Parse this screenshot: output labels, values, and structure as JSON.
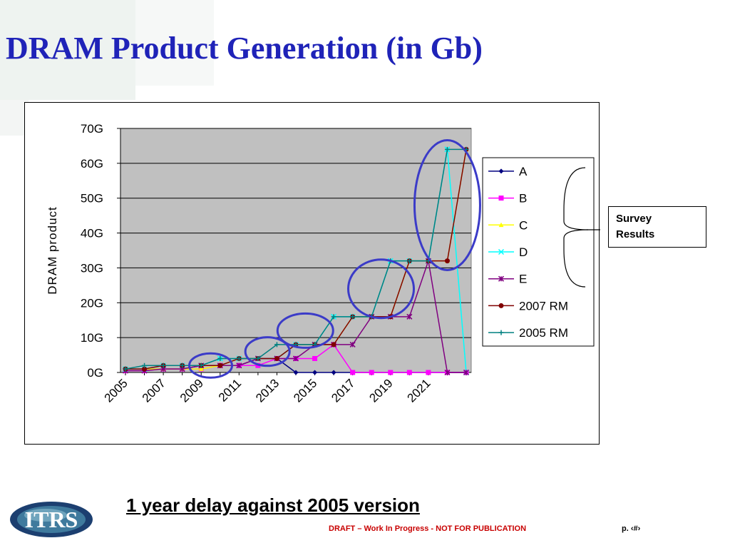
{
  "slide": {
    "title": "DRAM Product Generation (in Gb)",
    "callout": [
      "Survey",
      "Results"
    ],
    "subtitle": "1 year delay against 2005 version",
    "footer_draft": "DRAFT – Work In Progress - NOT FOR PUBLICATION",
    "footer_page": "p. ‹#›",
    "logo_text": "ITRS",
    "colors": {
      "title": "#1f23b8",
      "highlight_circle": "#3b3bc8",
      "plot_bg": "#c0c0c0",
      "footer": "#c80000"
    }
  },
  "chart_data": {
    "type": "line",
    "title": "",
    "xlabel": "",
    "ylabel": "DRAM product",
    "x": [
      2005,
      2006,
      2007,
      2008,
      2009,
      2010,
      2011,
      2012,
      2013,
      2014,
      2015,
      2016,
      2017,
      2018,
      2019,
      2020,
      2021,
      2022,
      2023
    ],
    "x_tick_labels": [
      "2005",
      "2007",
      "2009",
      "2011",
      "2013",
      "2015",
      "2017",
      "2019",
      "2021"
    ],
    "y_ticks": [
      0,
      10,
      20,
      30,
      40,
      50,
      60,
      70
    ],
    "y_tick_labels": [
      "0G",
      "10G",
      "20G",
      "30G",
      "40G",
      "50G",
      "60G",
      "70G"
    ],
    "ylim": [
      0,
      70
    ],
    "grid": "horizontal",
    "plot_background": "#c0c0c0",
    "legend_position": "right",
    "series": [
      {
        "name": "A",
        "color": "#000080",
        "marker": "diamond",
        "values": [
          1,
          1,
          1,
          1,
          2,
          2,
          2,
          4,
          4,
          0,
          0,
          0,
          0,
          0,
          0,
          0,
          0,
          0,
          0
        ]
      },
      {
        "name": "B",
        "color": "#ff00ff",
        "marker": "square",
        "values": [
          0.5,
          0.5,
          1,
          1,
          1,
          2,
          2,
          2,
          4,
          4,
          4,
          8,
          0,
          0,
          0,
          0,
          0,
          0,
          0
        ]
      },
      {
        "name": "C",
        "color": "#ffff00",
        "marker": "triangle",
        "values": [
          1,
          1,
          1,
          1,
          1,
          2,
          4,
          4,
          4,
          8,
          8,
          8,
          16,
          16,
          16,
          32,
          32,
          32,
          64
        ]
      },
      {
        "name": "D",
        "color": "#00ffff",
        "marker": "x",
        "values": [
          1,
          1,
          2,
          2,
          2,
          4,
          4,
          4,
          4,
          8,
          8,
          16,
          16,
          16,
          32,
          32,
          32,
          64,
          0
        ]
      },
      {
        "name": "E",
        "color": "#800080",
        "marker": "asterisk",
        "values": [
          0.5,
          0.5,
          1,
          1,
          2,
          2,
          2,
          4,
          4,
          4,
          8,
          8,
          8,
          16,
          16,
          16,
          32,
          0,
          0
        ]
      },
      {
        "name": "2007 RM",
        "color": "#800000",
        "marker": "circle",
        "values": [
          1,
          1,
          2,
          2,
          2,
          2,
          4,
          4,
          4,
          8,
          8,
          8,
          16,
          16,
          16,
          32,
          32,
          32,
          64
        ]
      },
      {
        "name": "2005 RM",
        "color": "#008080",
        "marker": "plus",
        "values": [
          1,
          2,
          2,
          2,
          2,
          4,
          4,
          4,
          8,
          8,
          8,
          16,
          16,
          16,
          32,
          32,
          32,
          64,
          64
        ]
      }
    ]
  }
}
